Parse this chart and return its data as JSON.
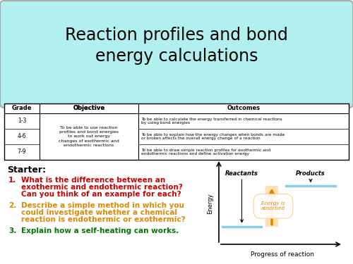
{
  "title_line1": "Reaction profiles and bond",
  "title_line2": "energy calculations",
  "title_bg": "#b2f0f0",
  "bg_color": "#ffffff",
  "table_headers": [
    "Grade",
    "Objective",
    "Outcomes"
  ],
  "table_grades": [
    "7-9",
    "4-6",
    "1-3"
  ],
  "table_objective": "To be able to use reaction\nprofiles and bond energies\nto work out energy\nchanges of exothermic and\nendothermic reactions",
  "table_outcomes": [
    "To be able to draw simple reaction profiles for exothermic and\nendothermic reactions and define activation energy",
    "To be able to explain how the energy changes when bonds are made\nor broken affects the overall energy change of a reaction",
    "To be able to calculate the energy transferred in chemical reactions\nby using bond energies"
  ],
  "starter_label": "Starter:",
  "items": [
    {
      "text": "What is the difference between an\nexothermic and endothermic reaction?\nCan you think of an example for each?",
      "color": "#cc0000"
    },
    {
      "text": "Describe a simple method in which you\ncould investigate whether a chemical\nreaction is endothermic or exothermic?",
      "color": "#dd8800"
    },
    {
      "text": "Explain how a self-heating can works.",
      "color": "#007700"
    }
  ],
  "graph_reactants_label": "Reactants",
  "graph_products_label": "Products",
  "graph_energy_label": "Energy",
  "graph_x_label": "Progress of reaction",
  "graph_annotation": "Energy is\nabsorbed",
  "arrow_color": "#dd8800",
  "graph_line_color": "#87ceeb"
}
